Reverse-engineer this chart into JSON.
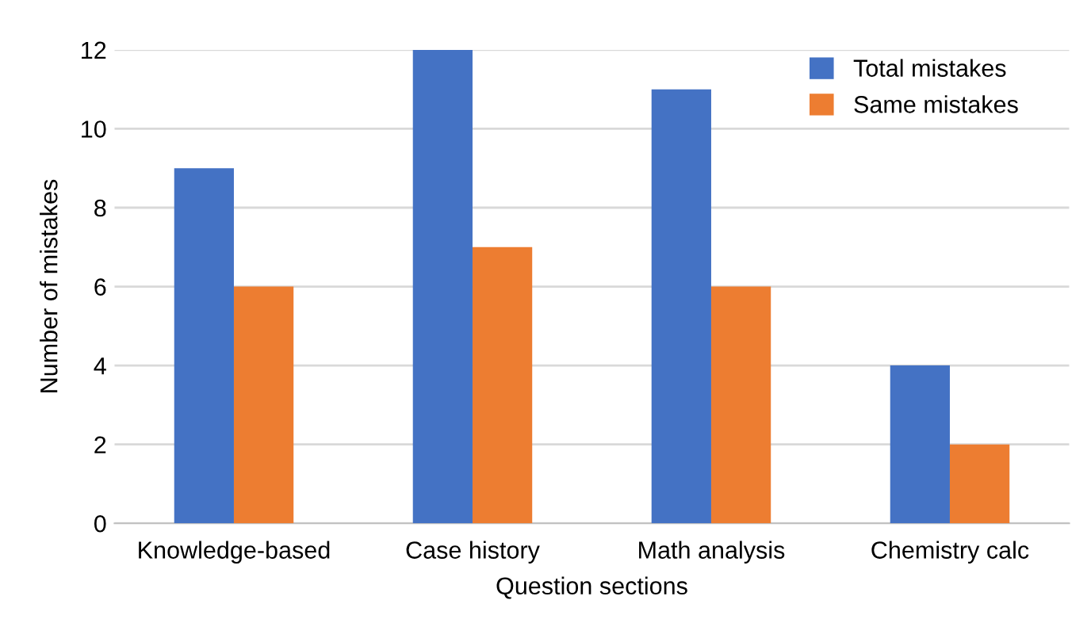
{
  "chart_data": {
    "type": "bar",
    "xlabel": "Question sections",
    "ylabel": "Number of mistakes",
    "categories": [
      "Knowledge-based",
      "Case history",
      "Math analysis",
      "Chemistry calc"
    ],
    "series": [
      {
        "name": "Total mistakes",
        "color": "#4472c4",
        "values": [
          9,
          12,
          11,
          4
        ]
      },
      {
        "name": "Same mistakes",
        "color": "#ed7d31",
        "values": [
          6,
          7,
          6,
          2
        ]
      }
    ],
    "ylim": [
      0,
      12
    ],
    "yticks": [
      0,
      2,
      4,
      6,
      8,
      10,
      12
    ],
    "grid": "y",
    "legend": "top right"
  }
}
